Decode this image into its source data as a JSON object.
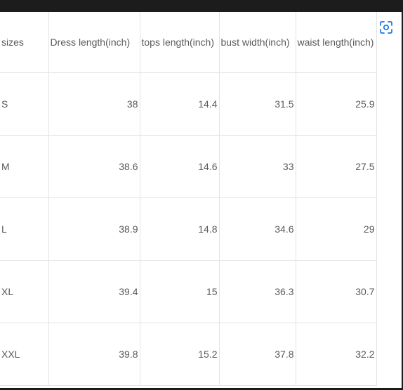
{
  "table": {
    "headers": [
      "sizes",
      "Dress length(inch)",
      "tops length(inch)",
      "bust width(inch)",
      "waist length(inch)"
    ],
    "rows": [
      [
        "S",
        "38",
        "14.4",
        "31.5",
        "25.9"
      ],
      [
        "M",
        "38.6",
        "14.6",
        "33",
        "27.5"
      ],
      [
        "L",
        "38.9",
        "14.8",
        "34.6",
        "29"
      ],
      [
        "XL",
        "39.4",
        "15",
        "36.3",
        "30.7"
      ],
      [
        "XXL",
        "39.8",
        "15.2",
        "37.8",
        "32.2"
      ]
    ]
  },
  "lens_icon": "visual-search-icon",
  "accent_color": "#1a73e8"
}
